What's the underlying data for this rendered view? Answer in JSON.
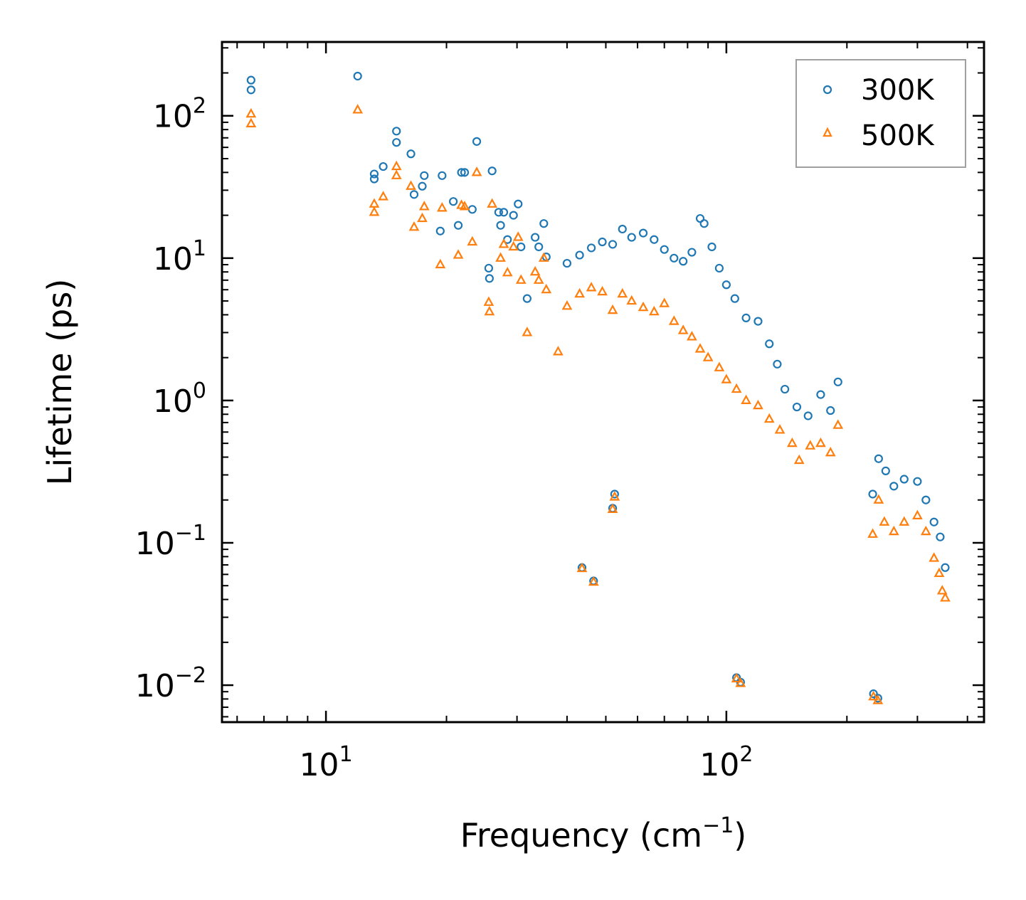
{
  "chart_data": {
    "type": "scatter",
    "title": "",
    "xlabel": "Frequency (cm",
    "xlabel_sup": "−1",
    "xlabel_end": ")",
    "ylabel": "Lifetime (ps)",
    "xscale": "log",
    "yscale": "log",
    "xlim": [
      5.5,
      440
    ],
    "ylim": [
      0.0055,
      330
    ],
    "legend_position": "top-right",
    "x_ticks": [
      {
        "value": 10,
        "base": "10",
        "exp": "1"
      },
      {
        "value": 100,
        "base": "10",
        "exp": "2"
      }
    ],
    "y_ticks": [
      {
        "value": 0.01,
        "base": "10",
        "exp": "−2"
      },
      {
        "value": 0.1,
        "base": "10",
        "exp": "−1"
      },
      {
        "value": 1,
        "base": "10",
        "exp": "0"
      },
      {
        "value": 10,
        "base": "10",
        "exp": "1"
      },
      {
        "value": 100,
        "base": "10",
        "exp": "2"
      }
    ],
    "series": [
      {
        "name": "300K",
        "marker": "circle",
        "color": "#1f77b4",
        "points": [
          [
            6.5,
            178
          ],
          [
            6.5,
            152
          ],
          [
            12.0,
            190
          ],
          [
            13.2,
            39
          ],
          [
            13.2,
            36
          ],
          [
            13.9,
            44
          ],
          [
            15.0,
            78
          ],
          [
            15.0,
            65
          ],
          [
            16.3,
            54
          ],
          [
            16.6,
            28
          ],
          [
            17.4,
            32
          ],
          [
            17.6,
            38
          ],
          [
            19.3,
            15.5
          ],
          [
            19.5,
            38
          ],
          [
            20.8,
            25
          ],
          [
            21.4,
            17
          ],
          [
            21.8,
            40
          ],
          [
            22.2,
            40
          ],
          [
            23.2,
            22
          ],
          [
            23.8,
            66
          ],
          [
            25.5,
            8.5
          ],
          [
            25.6,
            7.2
          ],
          [
            26.0,
            41
          ],
          [
            27.0,
            21
          ],
          [
            27.3,
            17
          ],
          [
            27.8,
            21
          ],
          [
            28.4,
            13.5
          ],
          [
            29.4,
            20
          ],
          [
            30.2,
            24
          ],
          [
            30.7,
            12
          ],
          [
            31.8,
            5.2
          ],
          [
            33.3,
            14
          ],
          [
            34.0,
            12
          ],
          [
            35.0,
            17.5
          ],
          [
            35.5,
            10.2
          ],
          [
            40.0,
            9.2
          ],
          [
            43.0,
            10.5
          ],
          [
            46.0,
            11.8
          ],
          [
            49.0,
            13
          ],
          [
            52.0,
            12.5
          ],
          [
            55.0,
            16
          ],
          [
            58.0,
            14
          ],
          [
            62.0,
            15
          ],
          [
            66.0,
            13.5
          ],
          [
            70.0,
            11.5
          ],
          [
            74.0,
            10
          ],
          [
            78.0,
            9.5
          ],
          [
            82.0,
            11
          ],
          [
            86.0,
            19
          ],
          [
            88.0,
            17.5
          ],
          [
            92.0,
            12
          ],
          [
            96.0,
            8.5
          ],
          [
            100.0,
            6.5
          ],
          [
            105.0,
            5.2
          ],
          [
            112.0,
            3.8
          ],
          [
            120.0,
            3.6
          ],
          [
            128.0,
            2.5
          ],
          [
            134.0,
            1.8
          ],
          [
            140.0,
            1.2
          ],
          [
            150.0,
            0.9
          ],
          [
            160.0,
            0.78
          ],
          [
            172.0,
            1.1
          ],
          [
            182.0,
            0.85
          ],
          [
            190.0,
            1.35
          ],
          [
            232.0,
            0.22
          ],
          [
            240.0,
            0.39
          ],
          [
            250.0,
            0.32
          ],
          [
            262.0,
            0.25
          ],
          [
            278.0,
            0.28
          ],
          [
            300.0,
            0.27
          ],
          [
            315.0,
            0.2
          ],
          [
            330.0,
            0.14
          ],
          [
            342.0,
            0.11
          ],
          [
            352.0,
            0.067
          ],
          [
            43.6,
            0.067
          ],
          [
            46.6,
            0.054
          ],
          [
            52.6,
            0.22
          ],
          [
            52.0,
            0.175
          ],
          [
            106.0,
            0.0113
          ],
          [
            108.5,
            0.0105
          ],
          [
            233.0,
            0.0087
          ],
          [
            239.0,
            0.0081
          ]
        ]
      },
      {
        "name": "500K",
        "marker": "triangle",
        "color": "#ff7f0e",
        "points": [
          [
            6.5,
            103
          ],
          [
            6.5,
            88
          ],
          [
            12.0,
            110
          ],
          [
            13.2,
            24
          ],
          [
            13.2,
            21
          ],
          [
            13.9,
            27
          ],
          [
            15.0,
            44
          ],
          [
            15.0,
            38
          ],
          [
            16.3,
            32
          ],
          [
            16.6,
            16.5
          ],
          [
            17.4,
            19
          ],
          [
            17.6,
            23
          ],
          [
            19.3,
            9.0
          ],
          [
            19.5,
            22.5
          ],
          [
            21.4,
            10.5
          ],
          [
            21.8,
            23.5
          ],
          [
            22.2,
            23
          ],
          [
            23.2,
            13
          ],
          [
            23.8,
            40
          ],
          [
            25.5,
            4.9
          ],
          [
            25.6,
            4.2
          ],
          [
            26.0,
            24
          ],
          [
            27.3,
            10
          ],
          [
            27.8,
            12.5
          ],
          [
            28.4,
            7.9
          ],
          [
            29.4,
            12
          ],
          [
            30.2,
            14
          ],
          [
            30.7,
            7
          ],
          [
            31.8,
            3.0
          ],
          [
            33.3,
            8
          ],
          [
            34.0,
            7
          ],
          [
            35.0,
            10
          ],
          [
            35.5,
            6
          ],
          [
            38.0,
            2.2
          ],
          [
            40.0,
            4.6
          ],
          [
            43.0,
            5.6
          ],
          [
            46.0,
            6.2
          ],
          [
            49.0,
            5.8
          ],
          [
            52.0,
            4.3
          ],
          [
            55.0,
            5.6
          ],
          [
            58.0,
            5.0
          ],
          [
            62.0,
            4.5
          ],
          [
            66.0,
            4.2
          ],
          [
            70.0,
            4.8
          ],
          [
            74.0,
            3.6
          ],
          [
            78.0,
            3.1
          ],
          [
            82.0,
            2.8
          ],
          [
            86.0,
            2.3
          ],
          [
            90.0,
            2.0
          ],
          [
            96.0,
            1.7
          ],
          [
            100.0,
            1.4
          ],
          [
            106.0,
            1.2
          ],
          [
            112.0,
            1.0
          ],
          [
            120.0,
            0.92
          ],
          [
            128.0,
            0.74
          ],
          [
            136.0,
            0.62
          ],
          [
            146.0,
            0.5
          ],
          [
            152.0,
            0.38
          ],
          [
            162.0,
            0.48
          ],
          [
            172.0,
            0.5
          ],
          [
            182.0,
            0.43
          ],
          [
            190.0,
            0.67
          ],
          [
            232.0,
            0.115
          ],
          [
            240.0,
            0.2
          ],
          [
            248.0,
            0.14
          ],
          [
            262.0,
            0.12
          ],
          [
            278.0,
            0.14
          ],
          [
            300.0,
            0.155
          ],
          [
            315.0,
            0.12
          ],
          [
            330.0,
            0.078
          ],
          [
            340.0,
            0.061
          ],
          [
            346.0,
            0.046
          ],
          [
            352.0,
            0.041
          ],
          [
            43.6,
            0.066
          ],
          [
            46.6,
            0.053
          ],
          [
            52.6,
            0.21
          ],
          [
            52.0,
            0.172
          ],
          [
            106.0,
            0.0111
          ],
          [
            108.5,
            0.0103
          ],
          [
            233.0,
            0.0083
          ],
          [
            239.0,
            0.0078
          ]
        ]
      }
    ]
  }
}
